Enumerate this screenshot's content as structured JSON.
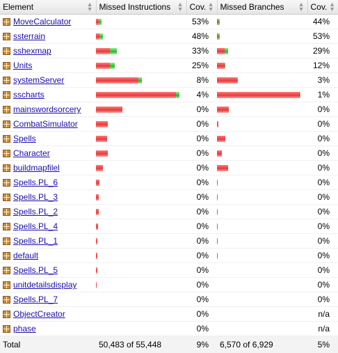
{
  "header": {
    "element": "Element",
    "missed_instructions": "Missed Instructions",
    "cov": "Cov.",
    "missed_branches": "Missed Branches",
    "cov2": "Cov."
  },
  "rows": [
    {
      "name": "MoveCalculator",
      "instr_cov": "53%",
      "branch_cov": "44%",
      "instr_red": 0.03,
      "instr_green": 0.03,
      "branch_red": 0.02,
      "branch_green": 0.015
    },
    {
      "name": "ssterrain",
      "instr_cov": "48%",
      "branch_cov": "53%",
      "instr_red": 0.045,
      "instr_green": 0.04,
      "branch_red": 0.02,
      "branch_green": 0.02
    },
    {
      "name": "sshexmap",
      "instr_cov": "33%",
      "branch_cov": "29%",
      "instr_red": 0.17,
      "instr_green": 0.08,
      "branch_red": 0.095,
      "branch_green": 0.04
    },
    {
      "name": "Units",
      "instr_cov": "25%",
      "branch_cov": "12%",
      "instr_red": 0.165,
      "instr_green": 0.055,
      "branch_red": 0.09,
      "branch_green": 0.012
    },
    {
      "name": "systemServer",
      "instr_cov": "8%",
      "branch_cov": "3%",
      "instr_red": 0.505,
      "instr_green": 0.045,
      "branch_red": 0.24,
      "branch_green": 0.008
    },
    {
      "name": "sscharts",
      "instr_cov": "4%",
      "branch_cov": "1%",
      "instr_red": 0.955,
      "instr_green": 0.04,
      "branch_red": 0.99,
      "branch_green": 0.01
    },
    {
      "name": "mainswordsorcery",
      "instr_cov": "0%",
      "branch_cov": "0%",
      "instr_red": 0.32,
      "instr_green": 0,
      "branch_red": 0.14,
      "branch_green": 0
    },
    {
      "name": "CombatSimulator",
      "instr_cov": "0%",
      "branch_cov": "0%",
      "instr_red": 0.145,
      "instr_green": 0,
      "branch_red": 0.02,
      "branch_green": 0
    },
    {
      "name": "Spells",
      "instr_cov": "0%",
      "branch_cov": "0%",
      "instr_red": 0.135,
      "instr_green": 0,
      "branch_red": 0.1,
      "branch_green": 0
    },
    {
      "name": "Character",
      "instr_cov": "0%",
      "branch_cov": "0%",
      "instr_red": 0.14,
      "instr_green": 0,
      "branch_red": 0.06,
      "branch_green": 0
    },
    {
      "name": "buildmapfilel",
      "instr_cov": "0%",
      "branch_cov": "0%",
      "instr_red": 0.085,
      "instr_green": 0,
      "branch_red": 0.13,
      "branch_green": 0
    },
    {
      "name": "Spells.PL_6",
      "instr_cov": "0%",
      "branch_cov": "0%",
      "instr_red": 0.038,
      "instr_green": 0,
      "branch_red": 0.01,
      "branch_green": 0
    },
    {
      "name": "Spells.PL_3",
      "instr_cov": "0%",
      "branch_cov": "0%",
      "instr_red": 0.035,
      "instr_green": 0,
      "branch_red": 0.01,
      "branch_green": 0
    },
    {
      "name": "Spells.PL_2",
      "instr_cov": "0%",
      "branch_cov": "0%",
      "instr_red": 0.03,
      "instr_green": 0,
      "branch_red": 0.008,
      "branch_green": 0
    },
    {
      "name": "Spells.PL_4",
      "instr_cov": "0%",
      "branch_cov": "0%",
      "instr_red": 0.022,
      "instr_green": 0,
      "branch_red": 0.008,
      "branch_green": 0
    },
    {
      "name": "Spells.PL_1",
      "instr_cov": "0%",
      "branch_cov": "0%",
      "instr_red": 0.016,
      "instr_green": 0,
      "branch_red": 0.008,
      "branch_green": 0
    },
    {
      "name": "default",
      "instr_cov": "0%",
      "branch_cov": "0%",
      "instr_red": 0.014,
      "instr_green": 0,
      "branch_red": 0.008,
      "branch_green": 0
    },
    {
      "name": "Spells.PL_5",
      "instr_cov": "0%",
      "branch_cov": "0%",
      "instr_red": 0.014,
      "instr_green": 0,
      "branch_red": 0,
      "branch_green": 0
    },
    {
      "name": "unitdetailsdisplay",
      "instr_cov": "0%",
      "branch_cov": "0%",
      "instr_red": 0.01,
      "instr_green": 0,
      "branch_red": 0,
      "branch_green": 0
    },
    {
      "name": "Spells.PL_7",
      "instr_cov": "0%",
      "branch_cov": "0%",
      "instr_red": 0,
      "instr_green": 0,
      "branch_red": 0,
      "branch_green": 0
    },
    {
      "name": "ObjectCreator",
      "instr_cov": "0%",
      "branch_cov": "n/a",
      "instr_red": 0,
      "instr_green": 0,
      "branch_red": 0,
      "branch_green": 0
    },
    {
      "name": "phase",
      "instr_cov": "0%",
      "branch_cov": "n/a",
      "instr_red": 0,
      "instr_green": 0,
      "branch_red": 0,
      "branch_green": 0
    }
  ],
  "footer": {
    "label": "Total",
    "missed_instructions": "50,483 of 55,448",
    "cov": "9%",
    "missed_branches": "6,570 of 6,929",
    "cov2": "5%"
  },
  "colors": {
    "missed": "#e53a3a",
    "covered": "#2fb42f",
    "link": "#1a0dab"
  }
}
